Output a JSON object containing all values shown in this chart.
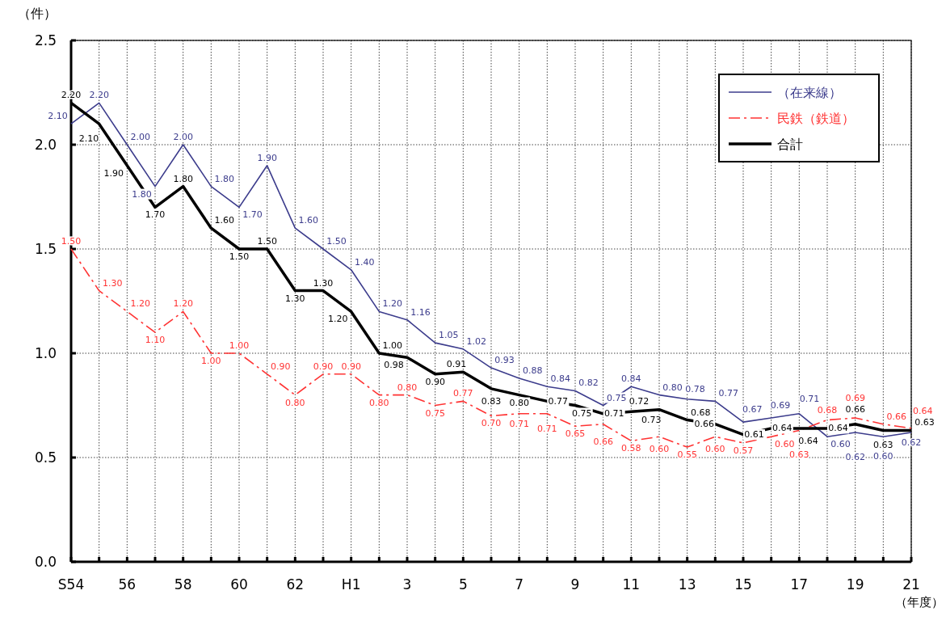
{
  "chart_data": {
    "type": "line",
    "ylabel": "（件）",
    "xlabel": "（年度）",
    "categories": [
      "S54",
      null,
      "56",
      null,
      "58",
      null,
      "60",
      null,
      "62",
      null,
      "H1",
      null,
      "3",
      null,
      "5",
      null,
      "7",
      null,
      "9",
      null,
      "11",
      null,
      "13",
      null,
      "15",
      null,
      "17",
      null,
      "19",
      null,
      "21"
    ],
    "ylim": [
      0,
      2.5
    ],
    "yticks": [
      {
        "value": 0,
        "label": "0.0"
      },
      {
        "value": 0.5,
        "label": "0.5"
      },
      {
        "value": 1,
        "label": "1.0"
      },
      {
        "value": 1.5,
        "label": "1.5"
      },
      {
        "value": 2,
        "label": "2.0"
      },
      {
        "value": 2.5,
        "label": "2.5"
      }
    ],
    "grid": true,
    "legend": "top right",
    "marker": "none",
    "series": [
      {
        "name": "（在来線）",
        "color": "#3c3c8c",
        "line_style": "solid",
        "values": [
          2.1,
          2.2,
          2.0,
          1.8,
          2.0,
          1.8,
          1.7,
          1.9,
          1.6,
          1.5,
          1.4,
          1.2,
          1.16,
          1.05,
          1.02,
          0.93,
          0.88,
          0.84,
          0.82,
          0.75,
          0.84,
          0.8,
          0.78,
          0.77,
          0.67,
          0.69,
          0.71,
          0.6,
          0.62,
          0.6,
          0.62
        ],
        "value_labels": [
          "2.10",
          "2.20",
          "2.00",
          "1.80",
          "2.00",
          "1.80",
          "1.70",
          "1.90",
          "1.60",
          "1.50",
          "1.40",
          "1.20",
          "1.16",
          "1.05",
          "1.02",
          "0.93",
          "0.88",
          "0.84",
          "0.82",
          "0.75",
          "0.84",
          "0.80",
          "0.78",
          "0.77",
          "0.67",
          "0.69",
          "0.71",
          "0.60",
          "0.62",
          "0.60",
          "0.62"
        ]
      },
      {
        "name": "民鉄（鉄道）",
        "color": "#ff3333",
        "line_style": "dashed",
        "values": [
          1.5,
          1.3,
          1.2,
          1.1,
          1.2,
          1.0,
          1.0,
          0.9,
          0.8,
          0.9,
          0.9,
          0.8,
          0.8,
          0.75,
          0.77,
          0.7,
          0.71,
          0.71,
          0.65,
          0.66,
          0.58,
          0.6,
          0.55,
          0.6,
          0.57,
          0.6,
          0.63,
          0.68,
          0.69,
          0.66,
          0.64
        ],
        "value_labels": [
          "1.50",
          "1.30",
          "1.20",
          "1.10",
          "1.20",
          "1.00",
          "1.00",
          "0.90",
          "0.80",
          "0.90",
          "0.90",
          "0.80",
          "0.80",
          "0.75",
          "0.77",
          "0.70",
          "0.71",
          "0.71",
          "0.65",
          "0.66",
          "0.58",
          "0.60",
          "0.55",
          "0.60",
          "0.57",
          "0.60",
          "0.63",
          "0.68",
          "0.69",
          "0.66",
          "0.64"
        ]
      },
      {
        "name": "合計",
        "color": "#000000",
        "line_style": "solid",
        "values": [
          2.2,
          2.1,
          1.9,
          1.7,
          1.8,
          1.6,
          1.5,
          1.5,
          1.3,
          1.3,
          1.2,
          1.0,
          0.98,
          0.9,
          0.91,
          0.83,
          0.8,
          0.77,
          0.75,
          0.71,
          0.72,
          0.73,
          0.68,
          0.66,
          0.61,
          0.64,
          0.64,
          0.64,
          0.66,
          0.63,
          0.63
        ],
        "value_labels": [
          "2.20",
          "2.10",
          "1.90",
          "1.70",
          "1.80",
          "1.60",
          "1.50",
          "1.50",
          "1.30",
          "1.30",
          "1.20",
          "1.00",
          "0.98",
          "0.90",
          "0.91",
          "0.83",
          "0.80",
          "0.77",
          "0.75",
          "0.71",
          "0.72",
          "0.73",
          "0.68",
          "0.66",
          "0.61",
          "0.64",
          "0.64",
          "0.64",
          "0.66",
          "0.63",
          "0.63"
        ]
      }
    ]
  }
}
